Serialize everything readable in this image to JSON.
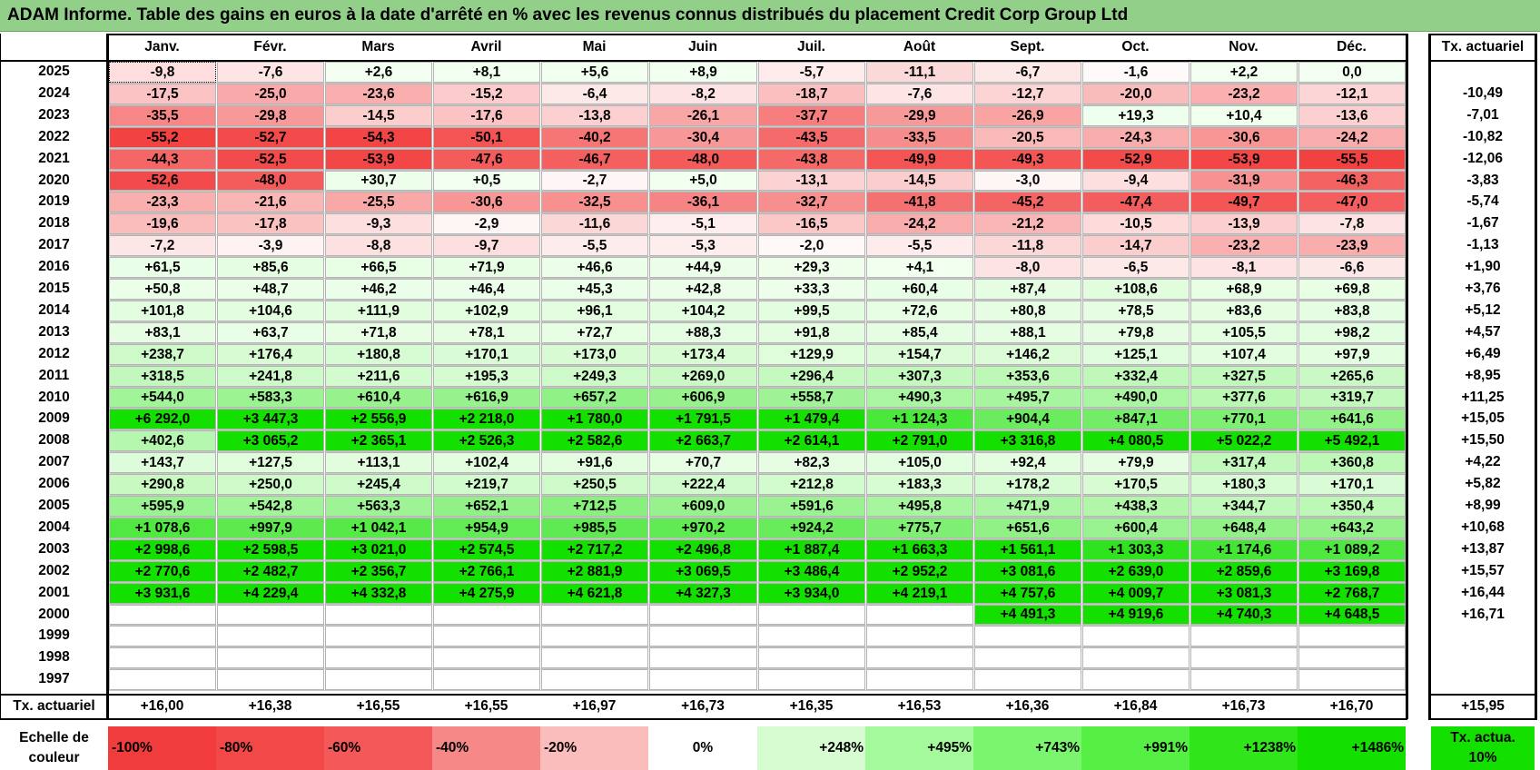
{
  "title": "ADAM Informe. Table des gains en euros à la date d'arrêté en % avec les revenus connus distribués du placement Credit Corp Group Ltd",
  "chart_data": {
    "type": "table",
    "columns": [
      "Janv.",
      "Févr.",
      "Mars",
      "Avril",
      "Mai",
      "Juin",
      "Juil.",
      "Août",
      "Sept.",
      "Oct.",
      "Nov.",
      "Déc."
    ],
    "annual_header": "Tx. actuariel",
    "rows": [
      {
        "year": "2025",
        "values": [
          "-9,8",
          "-7,6",
          "+2,6",
          "+8,1",
          "+5,6",
          "+8,9",
          "-5,7",
          "-11,1",
          "-6,7",
          "-1,6",
          "+2,2",
          "0,0"
        ],
        "annual": ""
      },
      {
        "year": "2024",
        "values": [
          "-17,5",
          "-25,0",
          "-23,6",
          "-15,2",
          "-6,4",
          "-8,2",
          "-18,7",
          "-7,6",
          "-12,7",
          "-20,0",
          "-23,2",
          "-12,1"
        ],
        "annual": "-10,49"
      },
      {
        "year": "2023",
        "values": [
          "-35,5",
          "-29,8",
          "-14,5",
          "-17,6",
          "-13,8",
          "-26,1",
          "-37,7",
          "-29,9",
          "-26,9",
          "+19,3",
          "+10,4",
          "-13,6"
        ],
        "annual": "-7,01"
      },
      {
        "year": "2022",
        "values": [
          "-55,2",
          "-52,7",
          "-54,3",
          "-50,1",
          "-40,2",
          "-30,4",
          "-43,5",
          "-33,5",
          "-20,5",
          "-24,3",
          "-30,6",
          "-24,2"
        ],
        "annual": "-10,82"
      },
      {
        "year": "2021",
        "values": [
          "-44,3",
          "-52,5",
          "-53,9",
          "-47,6",
          "-46,7",
          "-48,0",
          "-43,8",
          "-49,9",
          "-49,3",
          "-52,9",
          "-53,9",
          "-55,5"
        ],
        "annual": "-12,06"
      },
      {
        "year": "2020",
        "values": [
          "-52,6",
          "-48,0",
          "+30,7",
          "+0,5",
          "-2,7",
          "+5,0",
          "-13,1",
          "-14,5",
          "-3,0",
          "-9,4",
          "-31,9",
          "-46,3"
        ],
        "annual": "-3,83"
      },
      {
        "year": "2019",
        "values": [
          "-23,3",
          "-21,6",
          "-25,5",
          "-30,6",
          "-32,5",
          "-36,1",
          "-32,7",
          "-41,8",
          "-45,2",
          "-47,4",
          "-49,7",
          "-47,0"
        ],
        "annual": "-5,74"
      },
      {
        "year": "2018",
        "values": [
          "-19,6",
          "-17,8",
          "-9,3",
          "-2,9",
          "-11,6",
          "-5,1",
          "-16,5",
          "-24,2",
          "-21,2",
          "-10,5",
          "-13,9",
          "-7,8"
        ],
        "annual": "-1,67"
      },
      {
        "year": "2017",
        "values": [
          "-7,2",
          "-3,9",
          "-8,8",
          "-9,7",
          "-5,5",
          "-5,3",
          "-2,0",
          "-5,5",
          "-11,8",
          "-14,7",
          "-23,2",
          "-23,9"
        ],
        "annual": "-1,13"
      },
      {
        "year": "2016",
        "values": [
          "+61,5",
          "+85,6",
          "+66,5",
          "+71,9",
          "+46,6",
          "+44,9",
          "+29,3",
          "+4,1",
          "-8,0",
          "-6,5",
          "-8,1",
          "-6,6"
        ],
        "annual": "+1,90"
      },
      {
        "year": "2015",
        "values": [
          "+50,8",
          "+48,7",
          "+46,2",
          "+46,4",
          "+45,3",
          "+42,8",
          "+33,3",
          "+60,4",
          "+87,4",
          "+108,6",
          "+68,9",
          "+69,8"
        ],
        "annual": "+3,76"
      },
      {
        "year": "2014",
        "values": [
          "+101,8",
          "+104,6",
          "+111,9",
          "+102,9",
          "+96,1",
          "+104,2",
          "+99,5",
          "+72,6",
          "+80,8",
          "+78,5",
          "+83,6",
          "+83,8"
        ],
        "annual": "+5,12"
      },
      {
        "year": "2013",
        "values": [
          "+83,1",
          "+63,7",
          "+71,8",
          "+78,1",
          "+72,7",
          "+88,3",
          "+91,8",
          "+85,4",
          "+88,1",
          "+79,8",
          "+105,5",
          "+98,2"
        ],
        "annual": "+4,57"
      },
      {
        "year": "2012",
        "values": [
          "+238,7",
          "+176,4",
          "+180,8",
          "+170,1",
          "+173,0",
          "+173,4",
          "+129,9",
          "+154,7",
          "+146,2",
          "+125,1",
          "+107,4",
          "+97,9"
        ],
        "annual": "+6,49"
      },
      {
        "year": "2011",
        "values": [
          "+318,5",
          "+241,8",
          "+211,6",
          "+195,3",
          "+249,3",
          "+269,0",
          "+296,4",
          "+307,3",
          "+353,6",
          "+332,4",
          "+327,5",
          "+265,6"
        ],
        "annual": "+8,95"
      },
      {
        "year": "2010",
        "values": [
          "+544,0",
          "+583,3",
          "+610,4",
          "+616,9",
          "+657,2",
          "+606,9",
          "+558,7",
          "+490,3",
          "+495,7",
          "+490,0",
          "+377,6",
          "+319,7"
        ],
        "annual": "+11,25"
      },
      {
        "year": "2009",
        "values": [
          "+6 292,0",
          "+3 447,3",
          "+2 556,9",
          "+2 218,0",
          "+1 780,0",
          "+1 791,5",
          "+1 479,4",
          "+1 124,3",
          "+904,4",
          "+847,1",
          "+770,1",
          "+641,6"
        ],
        "annual": "+15,05"
      },
      {
        "year": "2008",
        "values": [
          "+402,6",
          "+3 065,2",
          "+2 365,1",
          "+2 526,3",
          "+2 582,6",
          "+2 663,7",
          "+2 614,1",
          "+2 791,0",
          "+3 316,8",
          "+4 080,5",
          "+5 022,2",
          "+5 492,1"
        ],
        "annual": "+15,50"
      },
      {
        "year": "2007",
        "values": [
          "+143,7",
          "+127,5",
          "+113,1",
          "+102,4",
          "+91,6",
          "+70,7",
          "+82,3",
          "+105,0",
          "+92,4",
          "+79,9",
          "+317,4",
          "+360,8"
        ],
        "annual": "+4,22"
      },
      {
        "year": "2006",
        "values": [
          "+290,8",
          "+250,0",
          "+245,4",
          "+219,7",
          "+250,5",
          "+222,4",
          "+212,8",
          "+183,3",
          "+178,2",
          "+170,5",
          "+180,3",
          "+170,1"
        ],
        "annual": "+5,82"
      },
      {
        "year": "2005",
        "values": [
          "+595,9",
          "+542,8",
          "+563,3",
          "+652,1",
          "+712,5",
          "+609,0",
          "+591,6",
          "+495,8",
          "+471,9",
          "+438,3",
          "+344,7",
          "+350,4"
        ],
        "annual": "+8,99"
      },
      {
        "year": "2004",
        "values": [
          "+1 078,6",
          "+997,9",
          "+1 042,1",
          "+954,9",
          "+985,5",
          "+970,2",
          "+924,2",
          "+775,7",
          "+651,6",
          "+600,4",
          "+648,4",
          "+643,2"
        ],
        "annual": "+10,68"
      },
      {
        "year": "2003",
        "values": [
          "+2 998,6",
          "+2 598,5",
          "+3 021,0",
          "+2 574,5",
          "+2 717,2",
          "+2 496,8",
          "+1 887,4",
          "+1 663,3",
          "+1 561,1",
          "+1 303,3",
          "+1 174,6",
          "+1 089,2"
        ],
        "annual": "+13,87"
      },
      {
        "year": "2002",
        "values": [
          "+2 770,6",
          "+2 482,7",
          "+2 356,7",
          "+2 766,1",
          "+2 881,9",
          "+3 069,5",
          "+3 486,4",
          "+2 952,2",
          "+3 081,6",
          "+2 639,0",
          "+2 859,6",
          "+3 169,8"
        ],
        "annual": "+15,57"
      },
      {
        "year": "2001",
        "values": [
          "+3 931,6",
          "+4 229,4",
          "+4 332,8",
          "+4 275,9",
          "+4 621,8",
          "+4 327,3",
          "+3 934,0",
          "+4 219,1",
          "+4 757,6",
          "+4 009,7",
          "+3 081,3",
          "+2 768,7"
        ],
        "annual": "+16,44"
      },
      {
        "year": "2000",
        "values": [
          "",
          "",
          "",
          "",
          "",
          "",
          "",
          "",
          "+4 491,3",
          "+4 919,6",
          "+4 740,3",
          "+4 648,5"
        ],
        "annual": "+16,71"
      },
      {
        "year": "1999",
        "values": [
          "",
          "",
          "",
          "",
          "",
          "",
          "",
          "",
          "",
          "",
          "",
          ""
        ],
        "annual": ""
      },
      {
        "year": "1998",
        "values": [
          "",
          "",
          "",
          "",
          "",
          "",
          "",
          "",
          "",
          "",
          "",
          ""
        ],
        "annual": ""
      },
      {
        "year": "1997",
        "values": [
          "",
          "",
          "",
          "",
          "",
          "",
          "",
          "",
          "",
          "",
          "",
          ""
        ],
        "annual": ""
      }
    ],
    "footer": {
      "label": "Tx. actuariel",
      "values": [
        "+16,00",
        "+16,38",
        "+16,55",
        "+16,55",
        "+16,97",
        "+16,73",
        "+16,35",
        "+16,53",
        "+16,36",
        "+16,84",
        "+16,73",
        "+16,70"
      ],
      "annual": "+15,95"
    },
    "color_scale": {
      "label": "Echelle de couleur",
      "steps": [
        {
          "label": "-100%",
          "color": "#f03c3c"
        },
        {
          "label": "-80%",
          "color": "#f24848"
        },
        {
          "label": "-60%",
          "color": "#f45858"
        },
        {
          "label": "-40%",
          "color": "#f78888"
        },
        {
          "label": "-20%",
          "color": "#fbbcbc"
        },
        {
          "label": "0%",
          "color": "#ffffff"
        },
        {
          "label": "+248%",
          "color": "#d8fcd2"
        },
        {
          "label": "+495%",
          "color": "#a4f99a"
        },
        {
          "label": "+743%",
          "color": "#7cf56e"
        },
        {
          "label": "+991%",
          "color": "#55f043"
        },
        {
          "label": "+1238%",
          "color": "#30e61a"
        },
        {
          "label": "+1486%",
          "color": "#14e000"
        }
      ],
      "annual_box": {
        "label": "Tx. actua. 10%",
        "color": "#14e000"
      }
    }
  }
}
